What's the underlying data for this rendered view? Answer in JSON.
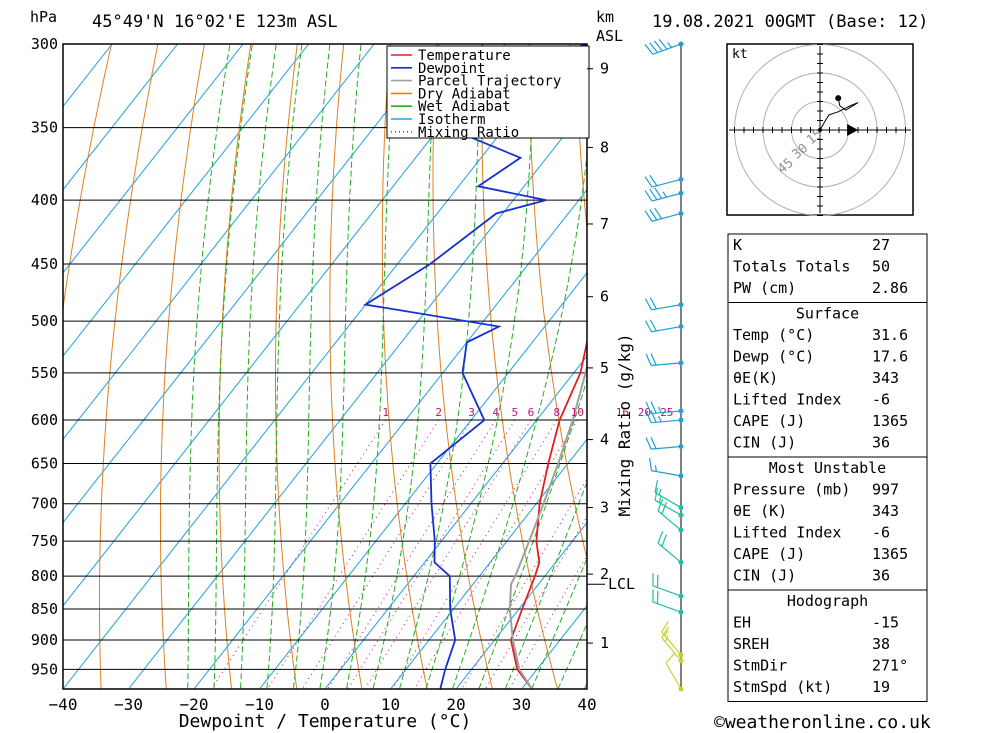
{
  "header": {
    "pressure_unit": "hPa",
    "location": "45°49'N  16°02'E  123m  ASL",
    "height_unit": "km",
    "height_ref": "ASL",
    "datetime": "19.08.2021  00GMT  (Base: 12)"
  },
  "footer": {
    "xlabel": "Dewpoint / Temperature (°C)",
    "credit": "©weatheronline.co.uk",
    "mixing_label": "Mixing Ratio (g/kg)"
  },
  "colors": {
    "temperature": "#e02020",
    "dewpoint": "#1530d0",
    "parcel": "#a0a0a0",
    "dry_adiabat": "#e08020",
    "wet_adiabat": "#20b020",
    "isotherm": "#20a0e0",
    "mixing_ratio": "#c0147a"
  },
  "chart_data": {
    "type": "line",
    "pressure_levels": [
      300,
      350,
      400,
      450,
      500,
      550,
      600,
      650,
      700,
      750,
      800,
      850,
      900,
      950
    ],
    "temp_ticks": [
      -40,
      -30,
      -20,
      -10,
      0,
      10,
      20,
      30,
      40
    ],
    "height_km": [
      {
        "km": "1",
        "p": 905
      },
      {
        "km": "2",
        "p": 797
      },
      {
        "km": "3",
        "p": 705
      },
      {
        "km": "4",
        "p": 622
      },
      {
        "km": "5",
        "p": 545
      },
      {
        "km": "6",
        "p": 478
      },
      {
        "km": "7",
        "p": 418
      },
      {
        "km": "8",
        "p": 363
      },
      {
        "km": "9",
        "p": 314
      }
    ],
    "lcl": {
      "label": "LCL",
      "p": 812
    },
    "mixing_ratios": [
      "1",
      "2",
      "3",
      "4",
      "5",
      "6",
      "8",
      "10",
      "16",
      "20",
      "25"
    ],
    "legend": [
      {
        "name": "Temperature",
        "key": "temperature",
        "style": "solid"
      },
      {
        "name": "Dewpoint",
        "key": "dewpoint",
        "style": "solid"
      },
      {
        "name": "Parcel Trajectory",
        "key": "parcel",
        "style": "solid"
      },
      {
        "name": "Dry Adiabat",
        "key": "dry_adiabat",
        "style": "solid"
      },
      {
        "name": "Wet Adiabat",
        "key": "wet_adiabat",
        "style": "solid"
      },
      {
        "name": "Isotherm",
        "key": "isotherm",
        "style": "solid"
      },
      {
        "name": "Mixing Ratio",
        "key": "mixing_ratio",
        "style": "dotted"
      }
    ],
    "series": [
      {
        "name": "Temperature",
        "points": [
          [
            1000,
            31.6
          ],
          [
            950,
            27.0
          ],
          [
            900,
            22.5
          ],
          [
            850,
            20.5
          ],
          [
            800,
            18.5
          ],
          [
            780,
            17.5
          ],
          [
            750,
            14.5
          ],
          [
            700,
            10.5
          ],
          [
            650,
            7.0
          ],
          [
            600,
            3.5
          ],
          [
            550,
            1.0
          ],
          [
            500,
            -3.5
          ],
          [
            480,
            -5.5
          ],
          [
            450,
            -9.5
          ],
          [
            400,
            -14.5
          ],
          [
            350,
            -21.5
          ],
          [
            300,
            -27.5
          ]
        ]
      },
      {
        "name": "Dewpoint",
        "points": [
          [
            1000,
            17.6
          ],
          [
            950,
            16.0
          ],
          [
            900,
            14.0
          ],
          [
            850,
            9.5
          ],
          [
            800,
            5.5
          ],
          [
            780,
            1.5
          ],
          [
            750,
            -1.0
          ],
          [
            700,
            -6.0
          ],
          [
            650,
            -11.0
          ],
          [
            600,
            -8.0
          ],
          [
            550,
            -17.0
          ],
          [
            520,
            -20.0
          ],
          [
            505,
            -17.0
          ],
          [
            485,
            -40.0
          ],
          [
            450,
            -35.0
          ],
          [
            410,
            -31.0
          ],
          [
            400,
            -25.0
          ],
          [
            390,
            -37.0
          ],
          [
            370,
            -34.0
          ],
          [
            355,
            -45.0
          ],
          [
            345,
            -38.0
          ],
          [
            335,
            -50.0
          ],
          [
            320,
            -41.0
          ],
          [
            310,
            -48.0
          ],
          [
            300,
            -37.0
          ]
        ]
      },
      {
        "name": "Parcel Trajectory",
        "points": [
          [
            1000,
            31.6
          ],
          [
            950,
            27.3
          ],
          [
            900,
            22.8
          ],
          [
            850,
            18.6
          ],
          [
            812,
            15.8
          ],
          [
            800,
            15.5
          ],
          [
            750,
            13.4
          ],
          [
            700,
            11.1
          ],
          [
            650,
            8.5
          ],
          [
            600,
            5.5
          ],
          [
            550,
            1.8
          ],
          [
            500,
            -2.6
          ],
          [
            450,
            -7.8
          ],
          [
            400,
            -14.0
          ],
          [
            350,
            -21.5
          ],
          [
            300,
            -30.0
          ]
        ]
      }
    ],
    "wind_barbs": [
      {
        "p": 300,
        "dir": 250,
        "kt": 45
      },
      {
        "p": 385,
        "dir": 255,
        "kt": 20
      },
      {
        "p": 395,
        "dir": 255,
        "kt": 35
      },
      {
        "p": 410,
        "dir": 255,
        "kt": 30
      },
      {
        "p": 485,
        "dir": 260,
        "kt": 20
      },
      {
        "p": 505,
        "dir": 260,
        "kt": 20
      },
      {
        "p": 540,
        "dir": 265,
        "kt": 20
      },
      {
        "p": 590,
        "dir": 265,
        "kt": 25
      },
      {
        "p": 600,
        "dir": 265,
        "kt": 25
      },
      {
        "p": 630,
        "dir": 265,
        "kt": 20
      },
      {
        "p": 665,
        "dir": 280,
        "kt": 15
      },
      {
        "p": 705,
        "dir": 300,
        "kt": 15
      },
      {
        "p": 715,
        "dir": 300,
        "kt": 15
      },
      {
        "p": 735,
        "dir": 310,
        "kt": 20
      },
      {
        "p": 780,
        "dir": 310,
        "kt": 20
      },
      {
        "p": 830,
        "dir": 290,
        "kt": 20
      },
      {
        "p": 855,
        "dir": 290,
        "kt": 20
      },
      {
        "p": 925,
        "dir": 320,
        "kt": 15
      },
      {
        "p": 935,
        "dir": 320,
        "kt": 15
      },
      {
        "p": 985,
        "dir": 330,
        "kt": 10
      }
    ],
    "hodograph": {
      "unit": "kt",
      "rings": [
        "15",
        "30",
        "45"
      ],
      "points": [
        [
          0,
          0
        ],
        [
          4,
          7
        ],
        [
          6,
          10
        ],
        [
          12,
          12
        ],
        [
          20,
          16
        ],
        [
          25,
          18
        ],
        [
          17,
          13
        ],
        [
          13,
          16
        ],
        [
          12,
          21
        ]
      ],
      "storm_motion": [
        19,
        0
      ]
    }
  },
  "indices": {
    "top": [
      {
        "label": "K",
        "value": "27"
      },
      {
        "label": "Totals Totals",
        "value": "50"
      },
      {
        "label": "PW (cm)",
        "value": "2.86"
      }
    ],
    "surface": {
      "title": "Surface",
      "rows": [
        {
          "label": "Temp (°C)",
          "value": "31.6"
        },
        {
          "label": "Dewp (°C)",
          "value": "17.6"
        },
        {
          "label": "θE(K)",
          "value": "343"
        },
        {
          "label": "Lifted Index",
          "value": "-6"
        },
        {
          "label": "CAPE (J)",
          "value": "1365"
        },
        {
          "label": "CIN (J)",
          "value": "36"
        }
      ]
    },
    "most_unstable": {
      "title": "Most Unstable",
      "rows": [
        {
          "label": "Pressure (mb)",
          "value": "997"
        },
        {
          "label": "θE (K)",
          "value": "343"
        },
        {
          "label": "Lifted Index",
          "value": "-6"
        },
        {
          "label": "CAPE (J)",
          "value": "1365"
        },
        {
          "label": "CIN (J)",
          "value": "36"
        }
      ]
    },
    "hodograph": {
      "title": "Hodograph",
      "rows": [
        {
          "label": "EH",
          "value": "-15"
        },
        {
          "label": "SREH",
          "value": "38"
        },
        {
          "label": "StmDir",
          "value": "271°"
        },
        {
          "label": "StmSpd (kt)",
          "value": "19"
        }
      ]
    }
  }
}
